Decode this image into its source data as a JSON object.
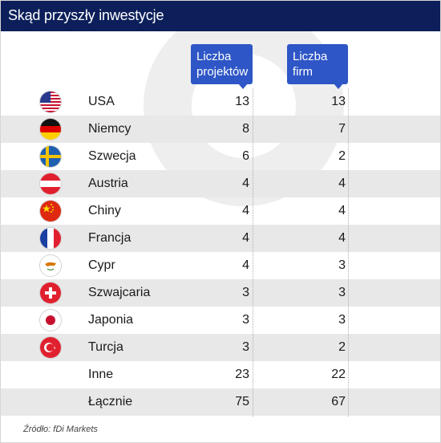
{
  "title": "Skąd przyszły inwestycje",
  "source": "Źródło: fDi Markets",
  "chart_data": {
    "type": "table",
    "columns": [
      "Liczba projektów",
      "Liczba firm"
    ],
    "rows": [
      {
        "country": "USA",
        "flag": "us-flag-icon",
        "projects": 13,
        "firms": 13
      },
      {
        "country": "Niemcy",
        "flag": "germany-flag-icon",
        "projects": 8,
        "firms": 7
      },
      {
        "country": "Szwecja",
        "flag": "sweden-flag-icon",
        "projects": 6,
        "firms": 2
      },
      {
        "country": "Austria",
        "flag": "austria-flag-icon",
        "projects": 4,
        "firms": 4
      },
      {
        "country": "Chiny",
        "flag": "china-flag-icon",
        "projects": 4,
        "firms": 4
      },
      {
        "country": "Francja",
        "flag": "france-flag-icon",
        "projects": 4,
        "firms": 4
      },
      {
        "country": "Cypr",
        "flag": "cyprus-flag-icon",
        "projects": 4,
        "firms": 3
      },
      {
        "country": "Szwajcaria",
        "flag": "switzerland-flag-icon",
        "projects": 3,
        "firms": 3
      },
      {
        "country": "Japonia",
        "flag": "japan-flag-icon",
        "projects": 3,
        "firms": 3
      },
      {
        "country": "Turcja",
        "flag": "turkey-flag-icon",
        "projects": 3,
        "firms": 2
      },
      {
        "country": "Inne",
        "flag": "",
        "projects": 23,
        "firms": 22
      },
      {
        "country": "Łącznie",
        "flag": "",
        "projects": 75,
        "firms": 67
      }
    ]
  },
  "colors": {
    "header_bg": "#0c1f5a",
    "column_header_bg": "#2e56c6",
    "stripe": "#e8e8e8"
  }
}
